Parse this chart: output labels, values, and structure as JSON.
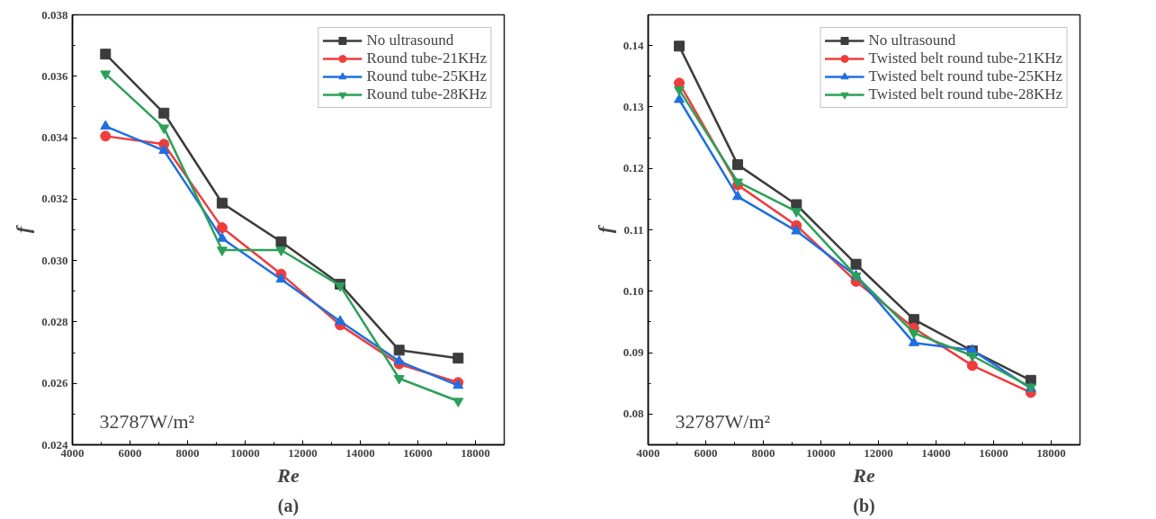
{
  "chart_data": [
    {
      "type": "line",
      "title": "(a)",
      "xlabel": "Re",
      "ylabel": "f",
      "annotations": [
        "32787W/m²"
      ],
      "x": [
        5150,
        7180,
        9200,
        11250,
        13300,
        15350,
        17400
      ],
      "series": [
        {
          "name": "No ultrasound",
          "color": "#3c3c3c",
          "marker": "square",
          "values": [
            0.03672,
            0.0348,
            0.03187,
            0.03061,
            0.02923,
            0.02708,
            0.02682
          ]
        },
        {
          "name": "Round tube-21KHz",
          "color": "#f03c3c",
          "marker": "circle",
          "values": [
            0.03405,
            0.03379,
            0.03107,
            0.02956,
            0.0279,
            0.02663,
            0.02603
          ]
        },
        {
          "name": "Round tube-25KHz",
          "color": "#1f6fe0",
          "marker": "triangle",
          "values": [
            0.03437,
            0.03358,
            0.03072,
            0.02939,
            0.02802,
            0.02672,
            0.02593
          ]
        },
        {
          "name": "Round tube-28KHz",
          "color": "#2ca05a",
          "marker": "triangle_down",
          "values": [
            0.03608,
            0.03432,
            0.03034,
            0.03034,
            0.02918,
            0.02616,
            0.02542
          ]
        }
      ],
      "xlim": [
        4000,
        19000
      ],
      "xticks": [
        4000,
        6000,
        8000,
        10000,
        12000,
        14000,
        16000,
        18000
      ],
      "ylim": [
        0.024,
        0.038
      ],
      "yticks": [
        {
          "value": 0.024,
          "label": "0.024"
        },
        {
          "value": 0.026,
          "label": "0.026"
        },
        {
          "value": 0.028,
          "label": "0.028"
        },
        {
          "value": 0.03,
          "label": "0.030"
        },
        {
          "value": 0.032,
          "label": "0.032"
        },
        {
          "value": 0.034,
          "label": "0.034"
        },
        {
          "value": 0.036,
          "label": "0.036"
        },
        {
          "value": 0.038,
          "label": "0.038"
        }
      ],
      "grid": false,
      "legend": "top right",
      "line_style": "solid"
    },
    {
      "type": "line",
      "title": "(b)",
      "xlabel": "Re",
      "ylabel": "f",
      "annotations": [
        "32787W/m²"
      ],
      "x": [
        5080,
        7110,
        9150,
        11220,
        13230,
        15260,
        17290
      ],
      "series": [
        {
          "name": "No ultrasound",
          "color": "#3c3c3c",
          "marker": "square",
          "values": [
            0.1399,
            0.1206,
            0.1141,
            0.1044,
            0.0954,
            0.0903,
            0.0855
          ]
        },
        {
          "name": "Twisted belt round tube-21KHz",
          "color": "#f03c3c",
          "marker": "circle",
          "values": [
            0.1339,
            0.1173,
            0.1107,
            0.1016,
            0.094,
            0.0879,
            0.0835
          ]
        },
        {
          "name": "Twisted belt round tube-25KHz",
          "color": "#1f6fe0",
          "marker": "triangle",
          "values": [
            0.1312,
            0.1154,
            0.1098,
            0.1025,
            0.0916,
            0.0904,
            0.0842
          ]
        },
        {
          "name": "Twisted belt round tube-28KHz",
          "color": "#2ca05a",
          "marker": "triangle_down",
          "values": [
            0.1328,
            0.1178,
            0.113,
            0.1025,
            0.0932,
            0.0895,
            0.0844
          ]
        }
      ],
      "xlim": [
        4000,
        19000
      ],
      "xticks": [
        4000,
        6000,
        8000,
        10000,
        12000,
        14000,
        16000,
        18000
      ],
      "ylim": [
        0.075,
        0.145
      ],
      "yticks": [
        0.08,
        0.09,
        {
          "value": 0.1,
          "label": "0.10"
        },
        0.11,
        0.12,
        0.13,
        0.14
      ],
      "grid": false,
      "legend": "top right",
      "line_style": "solid"
    }
  ]
}
